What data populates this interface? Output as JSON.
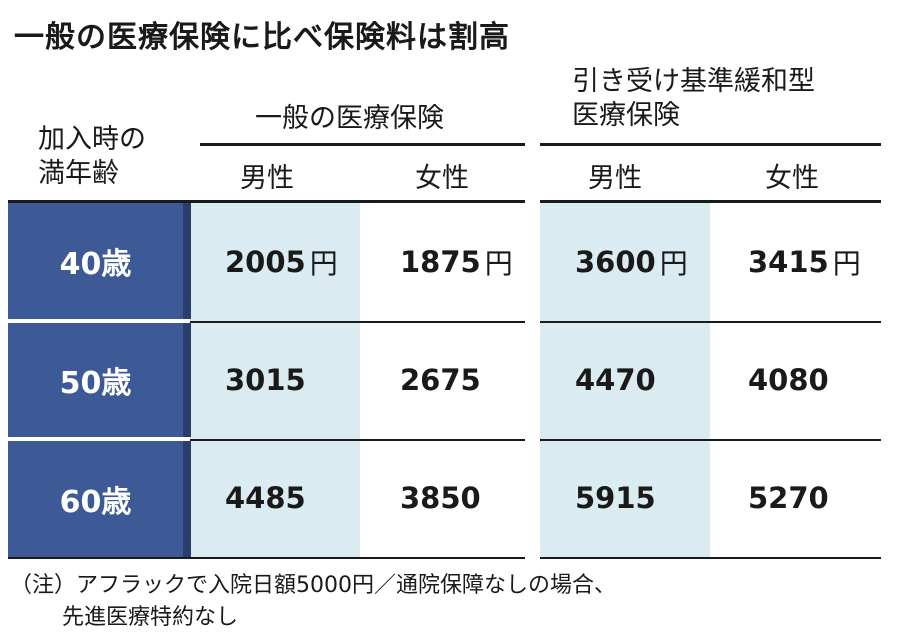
{
  "title": "一般の医療保険に比べ保険料は割高",
  "headers": {
    "age_label_line1": "加入時の",
    "age_label_line2": "満年齢",
    "group_general": "一般の医療保険",
    "group_relaxed_line1": "引き受け基準緩和型",
    "group_relaxed_line2": "医療保険",
    "male": "男性",
    "female": "女性"
  },
  "rows": [
    {
      "age": "40歳",
      "general_male": "2005",
      "general_female": "1875",
      "relaxed_male": "3600",
      "relaxed_female": "3415",
      "unit": "円"
    },
    {
      "age": "50歳",
      "general_male": "3015",
      "general_female": "2675",
      "relaxed_male": "4470",
      "relaxed_female": "4080"
    },
    {
      "age": "60歳",
      "general_male": "4485",
      "general_female": "3850",
      "relaxed_male": "5915",
      "relaxed_female": "5270"
    }
  ],
  "note": {
    "line1": "（注）アフラックで入院日額5000円／通院保障なしの場合、",
    "line2": "先進医療特約なし"
  },
  "colors": {
    "age_column": "#3d5a97",
    "age_column_edge": "#2a3d6e",
    "male_highlight": "#dbebf2",
    "text": "#1a1a1a"
  }
}
